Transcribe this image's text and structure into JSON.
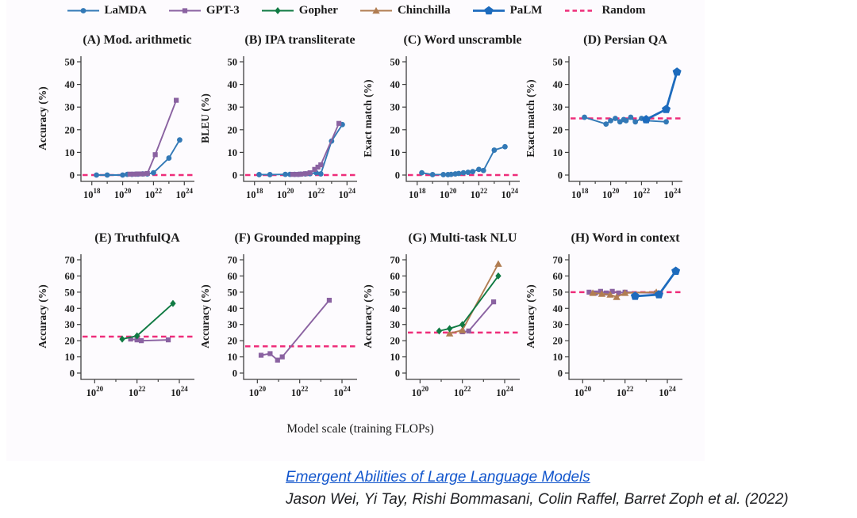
{
  "figure": {
    "xlabel": "Model scale (training FLOPs)",
    "legend": [
      {
        "label": "LaMDA",
        "color": "#3379b6",
        "marker": "circle"
      },
      {
        "label": "GPT-3",
        "color": "#8a62a1",
        "marker": "square"
      },
      {
        "label": "Gopher",
        "color": "#107a43",
        "marker": "diamond"
      },
      {
        "label": "Chinchilla",
        "color": "#b17d52",
        "marker": "triangle"
      },
      {
        "label": "PaLM",
        "color": "#1d6bbd",
        "marker": "pentagon"
      },
      {
        "label": "Random",
        "color": "#ee2d7a",
        "marker": "dashed-line"
      }
    ]
  },
  "chart_data": [
    {
      "id": "A",
      "type": "line",
      "title": "(A) Mod. arithmetic",
      "ylabel": "Accuracy (%)",
      "ylim": [
        0,
        50
      ],
      "yticks": [
        0,
        10,
        20,
        30,
        40,
        50
      ],
      "xtick_exps": [
        18,
        20,
        22,
        24
      ],
      "xlim_log": [
        17.5,
        24.5
      ],
      "random_baseline": 0,
      "series": [
        {
          "name": "LaMDA",
          "x_flops": [
            2e+18,
            1e+19,
            1e+20,
            2e+20,
            4e+20,
            7e+20,
            1e+21,
            2e+21,
            4e+21,
            1e+22,
            1e+23,
            5e+23
          ],
          "y": [
            0,
            0,
            0,
            0.3,
            0.3,
            0.4,
            0.4,
            0.5,
            0.5,
            1,
            7.5,
            15.5
          ]
        },
        {
          "name": "GPT-3",
          "x_flops": [
            3e+20,
            6e+20,
            1e+21,
            2e+21,
            4e+21,
            1.3e+22,
            3e+23
          ],
          "y": [
            0.4,
            0.4,
            0.5,
            0.5,
            0.7,
            9,
            33
          ]
        }
      ]
    },
    {
      "id": "B",
      "type": "line",
      "title": "(B) IPA transliterate",
      "ylabel": "BLEU (%)",
      "ylim": [
        0,
        50
      ],
      "yticks": [
        0,
        10,
        20,
        30,
        40,
        50
      ],
      "xtick_exps": [
        18,
        20,
        22,
        24
      ],
      "xlim_log": [
        17.5,
        24.5
      ],
      "random_baseline": 0,
      "series": [
        {
          "name": "LaMDA",
          "x_flops": [
            2e+18,
            1e+19,
            1e+20,
            2e+20,
            4e+20,
            7e+20,
            1e+21,
            2e+21,
            4e+21,
            1e+22,
            2e+22,
            1e+23,
            5e+23
          ],
          "y": [
            0.2,
            0.2,
            0.3,
            0.3,
            0.3,
            0.3,
            0.4,
            0.5,
            0.6,
            1,
            0.5,
            15,
            22.3
          ]
        },
        {
          "name": "GPT-3",
          "x_flops": [
            3e+20,
            6e+20,
            1e+21,
            2e+21,
            4e+21,
            8e+21,
            1.3e+22,
            2e+22,
            3e+23
          ],
          "y": [
            0.3,
            0.3,
            0.4,
            0.6,
            1,
            2.5,
            3.5,
            4.5,
            22.8
          ]
        }
      ]
    },
    {
      "id": "C",
      "type": "line",
      "title": "(C) Word unscramble",
      "ylabel": "Exact match (%)",
      "ylim": [
        0,
        50
      ],
      "yticks": [
        0,
        10,
        20,
        30,
        40,
        50
      ],
      "xtick_exps": [
        18,
        20,
        22,
        24
      ],
      "xlim_log": [
        17.5,
        24.5
      ],
      "random_baseline": 0,
      "series": [
        {
          "name": "LaMDA",
          "x_flops": [
            2e+18,
            1e+19,
            5e+19,
            1e+20,
            1.6e+20,
            3e+20,
            5e+20,
            1e+21,
            2e+21,
            4e+21,
            1e+22,
            2e+22,
            1e+23,
            5e+23
          ],
          "y": [
            1,
            0.2,
            0.2,
            0.2,
            0.3,
            0.5,
            0.7,
            1,
            1.2,
            1.5,
            2.5,
            2,
            11,
            12.5
          ]
        }
      ]
    },
    {
      "id": "D",
      "type": "line",
      "title": "(D) Persian QA",
      "ylabel": "Exact match (%)",
      "ylim": [
        0,
        50
      ],
      "yticks": [
        0,
        10,
        20,
        30,
        40,
        50
      ],
      "xtick_exps": [
        18,
        20,
        22,
        24
      ],
      "xlim_log": [
        17.5,
        24.5
      ],
      "random_baseline": 25,
      "series": [
        {
          "name": "LaMDA",
          "x_flops": [
            2e+18,
            5e+19,
            1e+20,
            2e+20,
            4e+20,
            7e+20,
            1e+21,
            2e+21,
            4e+21,
            1e+22,
            2e+22,
            4e+23
          ],
          "y": [
            25.5,
            22.5,
            24,
            25,
            23.5,
            24.5,
            24,
            25.5,
            23.5,
            25,
            24,
            23.5
          ]
        },
        {
          "name": "PaLM",
          "x_flops": [
            2e+22,
            4e+23,
            2e+24
          ],
          "y": [
            24.5,
            29,
            45.5
          ]
        }
      ]
    },
    {
      "id": "E",
      "type": "line",
      "title": "(E) TruthfulQA",
      "ylabel": "Accuracy (%)",
      "ylim": [
        0,
        70
      ],
      "yticks": [
        0,
        10,
        20,
        30,
        40,
        50,
        60,
        70
      ],
      "xtick_exps": [
        20,
        22,
        24
      ],
      "xlim_log": [
        19.5,
        24.6
      ],
      "random_baseline": 22.5,
      "series": [
        {
          "name": "GPT-3",
          "x_flops": [
            5e+21,
            1e+22,
            1.6e+22,
            3e+23
          ],
          "y": [
            21,
            20.5,
            20,
            20.5
          ]
        },
        {
          "name": "Gopher",
          "x_flops": [
            2e+21,
            1e+22,
            5e+23
          ],
          "y": [
            21,
            23,
            43
          ]
        }
      ]
    },
    {
      "id": "F",
      "type": "line",
      "title": "(F) Grounded mappings",
      "ylabel": "Accuracy (%)",
      "ylim": [
        0,
        70
      ],
      "yticks": [
        0,
        10,
        20,
        30,
        40,
        50,
        60,
        70
      ],
      "xtick_exps": [
        20,
        22,
        24
      ],
      "xlim_log": [
        19.5,
        24.6
      ],
      "random_baseline": 16.5,
      "series": [
        {
          "name": "GPT-3",
          "x_flops": [
            1.5e+20,
            4e+20,
            9e+20,
            1.5e+21,
            2.5e+23
          ],
          "y": [
            11,
            12,
            8,
            10,
            45
          ]
        }
      ]
    },
    {
      "id": "G",
      "type": "line",
      "title": "(G) Multi-task NLU",
      "ylabel": "Accuracy (%)",
      "ylim": [
        0,
        70
      ],
      "yticks": [
        0,
        10,
        20,
        30,
        40,
        50,
        60,
        70
      ],
      "xtick_exps": [
        20,
        22,
        24
      ],
      "xlim_log": [
        19.5,
        24.6
      ],
      "random_baseline": 25,
      "series": [
        {
          "name": "GPT-3",
          "x_flops": [
            1e+22,
            2e+22,
            3e+23
          ],
          "y": [
            25.5,
            26,
            44
          ]
        },
        {
          "name": "Chinchilla",
          "x_flops": [
            2.5e+21,
            1e+22,
            5e+23
          ],
          "y": [
            24.5,
            26.5,
            67.5
          ]
        },
        {
          "name": "Gopher",
          "x_flops": [
            8e+20,
            2.5e+21,
            1e+22,
            5e+23
          ],
          "y": [
            26,
            27.5,
            30,
            60
          ]
        }
      ]
    },
    {
      "id": "H",
      "type": "line",
      "title": "(H) Word in context",
      "ylabel": "Accuracy (%)",
      "ylim": [
        0,
        70
      ],
      "yticks": [
        0,
        10,
        20,
        30,
        40,
        50,
        60,
        70
      ],
      "xtick_exps": [
        20,
        22,
        24
      ],
      "xlim_log": [
        19.5,
        24.6
      ],
      "random_baseline": 50,
      "series": [
        {
          "name": "GPT-3",
          "x_flops": [
            2e+20,
            4e+20,
            7e+20,
            1.3e+21,
            2.5e+21,
            5e+21,
            1e+22,
            3e+23
          ],
          "y": [
            50,
            49.5,
            50.5,
            49.5,
            50.5,
            49.5,
            50,
            49.5
          ]
        },
        {
          "name": "Chinchilla",
          "x_flops": [
            3e+20,
            8e+20,
            2e+21,
            4e+21,
            1e+22,
            3e+23
          ],
          "y": [
            49.5,
            49,
            48.5,
            47,
            49.5,
            50
          ]
        },
        {
          "name": "PaLM",
          "x_flops": [
            3e+22,
            4e+23,
            2.5e+24
          ],
          "y": [
            47.5,
            48.5,
            63
          ]
        }
      ]
    }
  ],
  "citation": {
    "link": "Emergent Abilities of Large Language Models",
    "authors": "Jason Wei, Yi Tay, Rishi Bommasani, Colin Raffel, Barret Zoph et al. (2022)"
  }
}
